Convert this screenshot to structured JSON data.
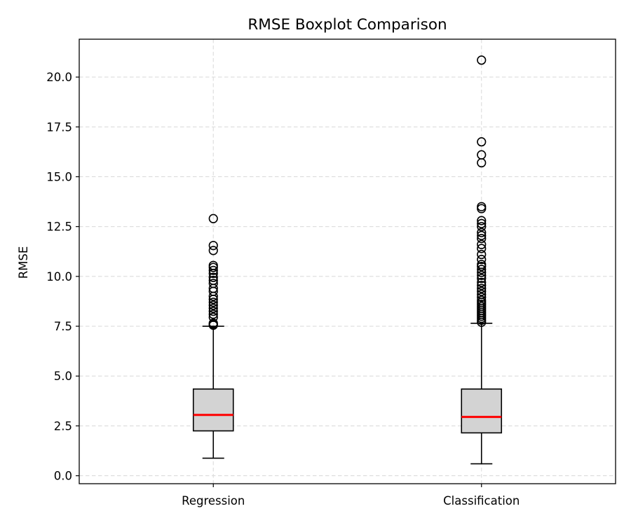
{
  "chart_data": {
    "type": "boxplot",
    "title": "RMSE Boxplot Comparison",
    "xlabel": "",
    "ylabel": "RMSE",
    "ylim": [
      -0.4,
      21.9
    ],
    "yticks": [
      0.0,
      2.5,
      5.0,
      7.5,
      10.0,
      12.5,
      15.0,
      17.5,
      20.0
    ],
    "ytick_labels": [
      "0.0",
      "2.5",
      "5.0",
      "7.5",
      "10.0",
      "12.5",
      "15.0",
      "17.5",
      "20.0"
    ],
    "grid": true,
    "colors": {
      "box_fill": "#d3d3d3",
      "median": "#ff0000",
      "grid": "#dcdcdc"
    },
    "categories": [
      "Regression",
      "Classification"
    ],
    "boxes": [
      {
        "category": "Regression",
        "whisker_low": 0.88,
        "q1": 2.25,
        "median": 3.05,
        "q3": 4.35,
        "whisker_high": 7.5,
        "fliers": [
          7.55,
          7.6,
          7.65,
          7.95,
          8.1,
          8.25,
          8.4,
          8.55,
          8.7,
          8.85,
          9.0,
          9.25,
          9.4,
          9.65,
          9.8,
          9.95,
          10.15,
          10.3,
          10.45,
          10.55,
          11.3,
          11.55,
          12.9
        ]
      },
      {
        "category": "Classification",
        "whisker_low": 0.6,
        "q1": 2.15,
        "median": 2.95,
        "q3": 4.35,
        "whisker_high": 7.65,
        "fliers": [
          7.7,
          7.8,
          7.9,
          8.0,
          8.1,
          8.2,
          8.3,
          8.4,
          8.5,
          8.6,
          8.7,
          8.8,
          8.95,
          9.1,
          9.25,
          9.4,
          9.55,
          9.7,
          9.9,
          10.05,
          10.2,
          10.35,
          10.5,
          10.6,
          10.85,
          11.1,
          11.4,
          11.6,
          11.9,
          12.05,
          12.2,
          12.5,
          12.65,
          12.8,
          13.4,
          13.5,
          15.7,
          16.1,
          16.75,
          20.85
        ]
      }
    ]
  }
}
